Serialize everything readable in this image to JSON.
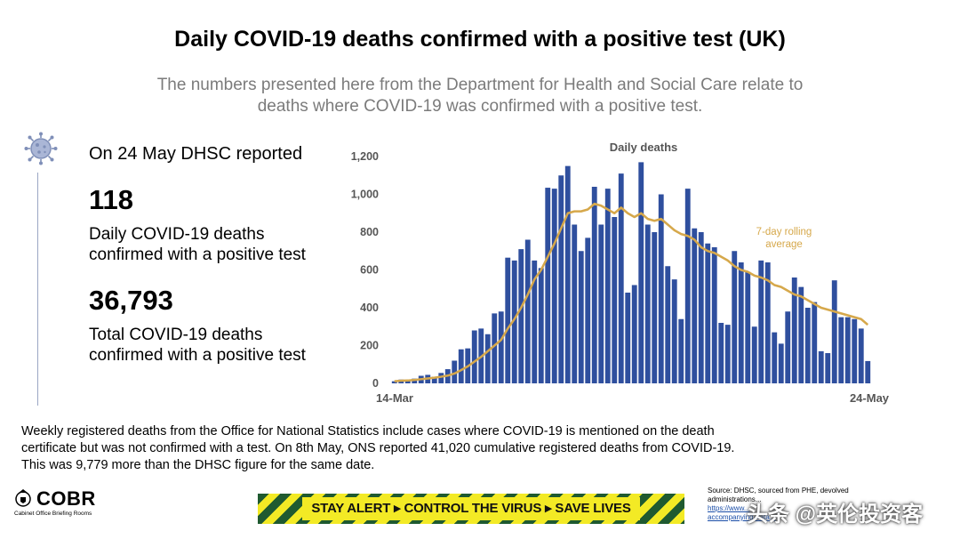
{
  "header": {
    "title": "Daily COVID-19 deaths confirmed with a positive test (UK)",
    "subtitle_line1": "The numbers presented here from the Department for Health and Social Care relate to",
    "subtitle_line2": "deaths where COVID-19 was confirmed with a positive test."
  },
  "summary": {
    "reported": "On 24 May DHSC reported",
    "daily_value": "118",
    "daily_label_line1": "Daily COVID-19 deaths",
    "daily_label_line2": "confirmed with a positive test",
    "total_value": "36,793",
    "total_label_line1": "Total COVID-19 deaths",
    "total_label_line2": "confirmed with a positive test",
    "icon": "virus-icon"
  },
  "footnote": {
    "line1": "Weekly registered deaths from the Office for National Statistics include cases where COVID-19 is mentioned on the death",
    "line2": "certificate but was not confirmed with a test. On 8th May, ONS reported 41,020 cumulative registered deaths from COVID-19.",
    "line3": "This was 9,779 more than the DHSC figure for the same date."
  },
  "footer": {
    "logo_text": "COBR",
    "logo_sub": "Cabinet Office Briefing Rooms",
    "banner_text": "STAY ALERT ▸ CONTROL THE VIRUS ▸ SAVE LIVES",
    "source_line1": "Source: DHSC, sourced from PHE, devolved",
    "source_line2": "administrations...",
    "source_link1": "https://www...",
    "source_link2": "accompanying-data...",
    "watermark": "头条 @英伦投资客"
  },
  "colors": {
    "bar": "#2f4f9e",
    "average": "#d6a84b",
    "average_label": "#d6a84b",
    "axis_text": "#555555"
  },
  "chart_data": {
    "type": "bar",
    "title": "Daily deaths",
    "x_start_label": "14-Mar",
    "x_end_label": "24-May",
    "ylim": [
      0,
      1200
    ],
    "yticks": [
      0,
      200,
      400,
      600,
      800,
      1000,
      1200
    ],
    "ytick_labels": [
      "0",
      "200",
      "400",
      "600",
      "800",
      "1,000",
      "1,200"
    ],
    "series": [
      {
        "name": "Daily deaths",
        "values": [
          11,
          20,
          15,
          25,
          40,
          45,
          35,
          55,
          75,
          120,
          180,
          185,
          280,
          290,
          260,
          370,
          380,
          665,
          650,
          710,
          760,
          650,
          610,
          1035,
          1030,
          1100,
          1150,
          840,
          700,
          770,
          1040,
          840,
          1030,
          880,
          1110,
          480,
          520,
          1170,
          840,
          800,
          1000,
          620,
          550,
          340,
          1030,
          820,
          800,
          740,
          720,
          320,
          310,
          700,
          640,
          590,
          300,
          650,
          640,
          270,
          210,
          380,
          560,
          510,
          400,
          430,
          170,
          160,
          545,
          350,
          350,
          340,
          290,
          118
        ]
      },
      {
        "name": "7-day rolling average",
        "label_line1": "7-day rolling",
        "label_line2": "average",
        "values": [
          11,
          14,
          15,
          18,
          22,
          26,
          30,
          35,
          41,
          52,
          70,
          90,
          115,
          140,
          170,
          200,
          230,
          290,
          340,
          400,
          470,
          550,
          600,
          670,
          740,
          820,
          900,
          910,
          910,
          920,
          950,
          940,
          920,
          900,
          930,
          900,
          880,
          900,
          870,
          860,
          870,
          840,
          810,
          790,
          780,
          760,
          720,
          700,
          690,
          670,
          650,
          620,
          600,
          590,
          570,
          560,
          545,
          520,
          510,
          490,
          470,
          460,
          440,
          420,
          400,
          390,
          380,
          370,
          360,
          350,
          340,
          310
        ]
      }
    ]
  }
}
